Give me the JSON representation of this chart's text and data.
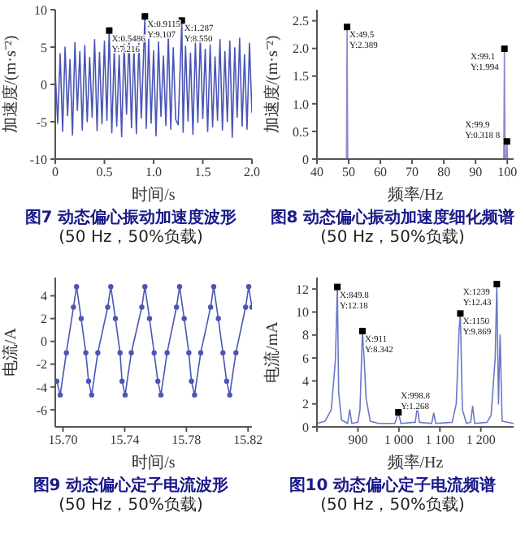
{
  "chart_data": [
    {
      "type": "line",
      "title": "图7 动态偏心振动加速度波形",
      "subtitle": "(50 Hz，50%负载)",
      "xlabel": "时间/s",
      "ylabel": "加速度/(m·s⁻²)",
      "xlim": [
        0,
        2
      ],
      "xticks": [
        0,
        0.5,
        {
          "value": 1,
          "label": "1.0"
        },
        1.5,
        {
          "value": 2,
          "label": "2.0"
        }
      ],
      "ylim": [
        -10,
        10
      ],
      "yticks": [
        -10,
        -5,
        0,
        5,
        10
      ],
      "series": [
        {
          "color": "#4a55b5",
          "x": [
            0,
            0.025,
            0.05,
            0.075,
            0.1,
            0.125,
            0.15,
            0.175,
            0.2,
            0.225,
            0.25,
            0.275,
            0.3,
            0.325,
            0.35,
            0.375,
            0.4,
            0.425,
            0.45,
            0.475,
            0.5,
            0.525,
            0.5486,
            0.575,
            0.6,
            0.625,
            0.65,
            0.675,
            0.7,
            0.725,
            0.75,
            0.775,
            0.8,
            0.825,
            0.85,
            0.875,
            0.9115,
            0.925,
            0.95,
            0.975,
            1,
            1.025,
            1.05,
            1.075,
            1.1,
            1.125,
            1.15,
            1.175,
            1.2,
            1.225,
            1.25,
            1.287,
            1.3,
            1.325,
            1.35,
            1.375,
            1.4,
            1.425,
            1.45,
            1.475,
            1.5,
            1.525,
            1.55,
            1.575,
            1.6,
            1.625,
            1.65,
            1.675,
            1.7,
            1.725,
            1.75,
            1.775,
            1.8,
            1.825,
            1.85,
            1.875,
            1.9,
            1.925,
            1.95,
            1.975,
            2
          ],
          "values": [
            1.5,
            -5.2,
            4.1,
            -6.3,
            5.0,
            -4.2,
            3.3,
            -6.8,
            5.6,
            -3.5,
            4.4,
            -6.1,
            5.2,
            -5.0,
            3.6,
            -4.4,
            6.0,
            -6.2,
            4.3,
            -5.3,
            5.8,
            -4.8,
            7.216,
            -6.5,
            4.6,
            -5.6,
            3.9,
            -7.0,
            5.4,
            -4.0,
            6.2,
            -5.8,
            4.8,
            -6.6,
            5.5,
            -4.5,
            9.107,
            -5.9,
            6.1,
            -5.2,
            4.5,
            -6.9,
            5.7,
            -4.3,
            3.8,
            -5.5,
            6.4,
            -6.0,
            4.9,
            -4.7,
            -5.4,
            8.55,
            -6.4,
            5.1,
            -4.9,
            4.2,
            -6.7,
            5.6,
            -5.1,
            6.3,
            -4.6,
            4.7,
            -6.3,
            5.3,
            -5.7,
            3.7,
            -4.8,
            6.0,
            -6.1,
            4.4,
            -5.0,
            5.8,
            -7.1,
            4.9,
            -4.4,
            6.2,
            -5.6,
            4.0,
            -6.0,
            5.5,
            -3.8
          ]
        },
        {
          "type": "scatter",
          "marker": "square",
          "color": "#000000",
          "x": [
            0.5486,
            0.9115,
            1.287
          ],
          "values": [
            7.216,
            9.107,
            8.55
          ]
        }
      ],
      "annotations": [
        {
          "text": "X:0.5486\nY:7.216",
          "x": 0.5486,
          "y": 7.216
        },
        {
          "text": "X:0.9115\nY:9.107",
          "x": 0.9115,
          "y": 9.107
        },
        {
          "text": "X:1.287\nY:8.550",
          "x": 1.287,
          "y": 8.55
        }
      ]
    },
    {
      "type": "line",
      "title": "图8 动态偏心振动加速度细化频谱",
      "subtitle": "(50 Hz，50%负载)",
      "xlabel": "频率/Hz",
      "ylabel": "加速度/(m·s⁻²)",
      "xlim": [
        40,
        102
      ],
      "xticks": [
        40,
        50,
        60,
        70,
        80,
        90,
        100
      ],
      "ylim": [
        0,
        2.7
      ],
      "yticks": [
        0,
        0.5,
        {
          "value": 1,
          "label": "1.0"
        },
        1.5,
        {
          "value": 2,
          "label": "2.0"
        },
        2.5
      ],
      "series": [
        {
          "color": "#8a8ad0",
          "x": [
            40,
            49.3,
            49.5,
            49.7,
            98.9,
            99.1,
            99.3,
            99.7,
            99.9,
            100.1,
            102
          ],
          "values": [
            0,
            0,
            2.389,
            0,
            0,
            1.994,
            0,
            0,
            0.3188,
            0,
            0
          ]
        },
        {
          "type": "scatter",
          "marker": "square",
          "color": "#000000",
          "x": [
            49.5,
            99.1,
            99.9
          ],
          "values": [
            2.389,
            1.994,
            0.3188
          ]
        }
      ],
      "annotations": [
        {
          "text": "X:49.5\nY:2.389",
          "x": 49.5,
          "y": 2.389
        },
        {
          "text": "X:99.1\nY:1.994",
          "x": 99.1,
          "y": 1.994
        },
        {
          "text": "X:99.9\nY:0.318 8",
          "x": 99.9,
          "y": 0.3188
        }
      ]
    },
    {
      "type": "line",
      "title": "图9 动态偏心定子电流波形",
      "subtitle": "(50 Hz，50%负载)",
      "xlabel": "时间/s",
      "ylabel": "电流/A",
      "xlim": [
        15.695,
        15.8225
      ],
      "xticks": [
        {
          "value": 15.7,
          "label": "15.70"
        },
        15.74,
        15.78,
        15.82
      ],
      "ylim": [
        -7.5,
        5.6
      ],
      "yticks": [
        -6,
        -4,
        -2,
        0,
        2,
        4
      ],
      "series": [
        {
          "color": "#4a55b5",
          "marker": "circle",
          "x": [
            15.696,
            15.6982,
            15.7022,
            15.7068,
            15.7088,
            15.7118,
            15.7148,
            15.7166,
            15.7186,
            15.7226,
            15.729,
            15.731,
            15.734,
            15.737,
            15.7383,
            15.7403,
            15.7443,
            15.7511,
            15.7531,
            15.7561,
            15.7591,
            15.7615,
            15.7635,
            15.7675,
            15.7736,
            15.7756,
            15.7786,
            15.7816,
            15.7833,
            15.7853,
            15.7893,
            15.7957,
            15.7977,
            15.8007,
            15.8037,
            15.8061,
            15.8081,
            15.8121,
            15.8184,
            15.8204,
            15.8225
          ],
          "values": [
            -3.5,
            -4.7,
            -1.0,
            3.0,
            4.8,
            2.0,
            -1.0,
            -3.5,
            -4.7,
            -1.0,
            3.0,
            4.8,
            2.0,
            -1.0,
            -3.5,
            -4.7,
            -1.0,
            3.0,
            4.8,
            2.0,
            -1.0,
            -3.5,
            -4.7,
            -1.0,
            3.0,
            4.8,
            2.0,
            -1.0,
            -3.5,
            -4.7,
            -1.0,
            3.0,
            4.8,
            2.0,
            -1.0,
            -3.5,
            -4.7,
            -1.0,
            3.0,
            4.8,
            3.0
          ]
        }
      ]
    },
    {
      "type": "line",
      "title": "图10 动态偏心定子电流频谱",
      "subtitle": "(50 Hz，50%负载)",
      "xlabel": "频率/Hz",
      "ylabel": "电流/mA",
      "xlim": [
        800,
        1280
      ],
      "xticks": [
        {
          "value": 800,
          "label": null
        },
        900,
        {
          "value": 1000,
          "label": "1 000"
        },
        {
          "value": 1100,
          "label": "1 100"
        },
        {
          "value": 1200,
          "label": "1 200"
        }
      ],
      "ylim": [
        0,
        13
      ],
      "yticks": [
        0,
        2,
        4,
        6,
        8,
        10,
        12
      ],
      "series": [
        {
          "color": "#6a78c8",
          "x": [
            800,
            820,
            835,
            845,
            849.8,
            853,
            860,
            875,
            880,
            885,
            900,
            905,
            911,
            915,
            920,
            930,
            950,
            990,
            998.8,
            1005,
            1040,
            1045,
            1050,
            1080,
            1085,
            1090,
            1130,
            1140,
            1147,
            1150,
            1155,
            1165,
            1175,
            1180,
            1185,
            1215,
            1225,
            1235,
            1239,
            1243,
            1247,
            1252,
            1280
          ],
          "values": [
            0.3,
            0.5,
            1.5,
            5.8,
            12.18,
            3,
            0.6,
            0.3,
            1.5,
            0.3,
            0.4,
            1.5,
            8.342,
            6.0,
            2.5,
            0.5,
            0.3,
            0.3,
            1.268,
            0.3,
            0.4,
            1.8,
            0.4,
            0.3,
            1.2,
            0.3,
            0.4,
            2.0,
            8.5,
            9.869,
            1.5,
            0.3,
            0.4,
            1.8,
            0.3,
            0.4,
            1.0,
            6.0,
            12.43,
            2,
            8.0,
            0.5,
            0.3
          ]
        },
        {
          "type": "scatter",
          "marker": "square",
          "color": "#000000",
          "x": [
            849.8,
            911,
            998.8,
            1150,
            1239
          ],
          "values": [
            12.18,
            8.342,
            1.268,
            9.869,
            12.43
          ]
        }
      ],
      "annotations": [
        {
          "text": "X:849.8\nY:12.18",
          "x": 849.8,
          "y": 12.18
        },
        {
          "text": "X:911\nY:8.342",
          "x": 911,
          "y": 8.342
        },
        {
          "text": "X:998.8\nY:1.268",
          "x": 998.8,
          "y": 1.268
        },
        {
          "text": "X:1150\nY:9.869",
          "x": 1150,
          "y": 9.869
        },
        {
          "text": "X:1239\nY:12.43",
          "x": 1239,
          "y": 12.43
        }
      ]
    }
  ]
}
